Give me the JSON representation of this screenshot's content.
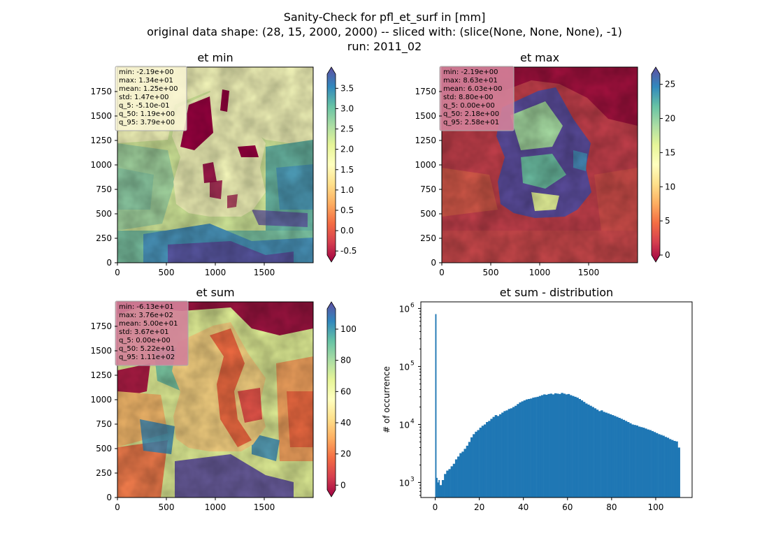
{
  "figure": {
    "suptitle_lines": [
      "Sanity-Check for pfl_et_surf in [mm]",
      "original data shape: (28, 15, 2000, 2000) -- sliced with: (slice(None, None, None), -1)",
      "run: 2011_02"
    ]
  },
  "colors": {
    "stats_box_light": "#fbf7d6",
    "stats_box_red": "#d4829a",
    "histogram_bar": "#1f77b4",
    "spectral_stops": [
      "#9e0142",
      "#d53e4f",
      "#f46d43",
      "#fdae61",
      "#fee08b",
      "#ffffbf",
      "#e6f598",
      "#abdda4",
      "#66c2a5",
      "#3288bd",
      "#5e4fa2"
    ]
  },
  "chart_data": [
    {
      "type": "heatmap",
      "title": "et min",
      "colormap": "Spectral_r",
      "colorbar_ticks": [
        "-0.5",
        "0.0",
        "0.5",
        "1.0",
        "1.5",
        "2.0",
        "2.5",
        "3.0",
        "3.5"
      ],
      "colorbar_range": [
        -0.6,
        3.85
      ],
      "colorbar_extend": "both",
      "x_ticks": [
        "0",
        "500",
        "1000",
        "1500"
      ],
      "y_ticks": [
        "0",
        "250",
        "500",
        "750",
        "1000",
        "1250",
        "1500",
        "1750"
      ],
      "xlim": [
        0,
        2000
      ],
      "ylim": [
        0,
        2000
      ],
      "stats": [
        "min: -2.19e+00",
        "max: 1.34e+01",
        "mean: 1.25e+00",
        "std: 1.47e+00",
        "q_5: -5.10e-01",
        "q_50: 1.19e+00",
        "q_95: 3.79e+00"
      ]
    },
    {
      "type": "heatmap",
      "title": "et max",
      "colormap": "Spectral",
      "colorbar_ticks": [
        "0",
        "5",
        "10",
        "15",
        "20",
        "25"
      ],
      "colorbar_range": [
        0,
        26.5
      ],
      "colorbar_extend": "both",
      "x_ticks": [
        "0",
        "500",
        "1000",
        "1500"
      ],
      "y_ticks": [
        "0",
        "250",
        "500",
        "750",
        "1000",
        "1250",
        "1500",
        "1750"
      ],
      "xlim": [
        0,
        2000
      ],
      "ylim": [
        0,
        2000
      ],
      "stats": [
        "min: -2.19e+00",
        "max: 8.63e+01",
        "mean: 6.03e+00",
        "std: 8.80e+00",
        "q_5: 0.00e+00",
        "q_50: 2.18e+00",
        "q_95: 2.58e+01"
      ]
    },
    {
      "type": "heatmap",
      "title": "et sum",
      "colormap": "Spectral",
      "colorbar_ticks": [
        "0",
        "20",
        "40",
        "60",
        "80",
        "100"
      ],
      "colorbar_range": [
        -3,
        113
      ],
      "colorbar_extend": "both",
      "x_ticks": [
        "0",
        "500",
        "1000",
        "1500"
      ],
      "y_ticks": [
        "0",
        "250",
        "500",
        "750",
        "1000",
        "1250",
        "1500",
        "1750"
      ],
      "xlim": [
        0,
        2000
      ],
      "ylim": [
        0,
        2000
      ],
      "stats": [
        "min: -6.13e+01",
        "max: 3.76e+02",
        "mean: 5.00e+01",
        "std: 3.67e+01",
        "q_5: 0.00e+00",
        "q_50: 5.22e+01",
        "q_95: 1.11e+02"
      ]
    },
    {
      "type": "bar",
      "title": "et sum - distribution",
      "ylabel": "# of occurrence",
      "y_scale": "log",
      "xlim": [
        -6.5,
        116.5
      ],
      "ylim": [
        550,
        1300000
      ],
      "x_ticks": [
        0,
        20,
        40,
        60,
        80,
        100
      ],
      "y_ticks": [
        1000,
        10000,
        100000,
        1000000
      ],
      "y_tick_bases": [
        "10",
        "10",
        "10",
        "10"
      ],
      "y_tick_exponents": [
        "3",
        "4",
        "5",
        "6"
      ],
      "bin_width": 0.5,
      "x": [
        0,
        0.5,
        1,
        1.5,
        2,
        3,
        4,
        5,
        6,
        7,
        8,
        9,
        10,
        11,
        12,
        13,
        14,
        15,
        16,
        17,
        18,
        19,
        20,
        21,
        22,
        23,
        24,
        25,
        26,
        27,
        28,
        29,
        30,
        31,
        32,
        33,
        34,
        35,
        36,
        37,
        38,
        39,
        40,
        41,
        42,
        43,
        44,
        45,
        46,
        47,
        48,
        49,
        50,
        51,
        52,
        53,
        54,
        55,
        56,
        57,
        58,
        59,
        60,
        61,
        62,
        63,
        64,
        65,
        66,
        67,
        68,
        69,
        70,
        71,
        72,
        73,
        74,
        75,
        76,
        77,
        78,
        79,
        80,
        81,
        82,
        83,
        84,
        85,
        86,
        87,
        88,
        89,
        90,
        91,
        92,
        93,
        94,
        95,
        96,
        97,
        98,
        99,
        100,
        101,
        102,
        103,
        104,
        105,
        106,
        107,
        108,
        109,
        110
      ],
      "values": [
        800000,
        1200,
        1000,
        1100,
        900,
        1100,
        1400,
        1600,
        1700,
        1900,
        2100,
        2500,
        2800,
        3200,
        3400,
        3800,
        4300,
        5000,
        6000,
        6800,
        7500,
        8000,
        8800,
        9500,
        10000,
        11000,
        11500,
        12500,
        13500,
        14500,
        14000,
        15000,
        16000,
        17000,
        17500,
        18500,
        19000,
        20000,
        21000,
        22500,
        24000,
        25000,
        26000,
        27000,
        27500,
        28000,
        29000,
        29500,
        30000,
        31000,
        32000,
        33000,
        32500,
        33500,
        34000,
        33000,
        34500,
        34000,
        33500,
        35000,
        34000,
        33000,
        33500,
        32000,
        31000,
        30000,
        29000,
        27500,
        26000,
        24500,
        23000,
        22000,
        21000,
        20000,
        19000,
        18000,
        17000,
        17500,
        16500,
        16000,
        15500,
        15000,
        14500,
        14000,
        13500,
        13000,
        12500,
        12000,
        11500,
        11000,
        10500,
        10000,
        9800,
        9600,
        9200,
        9000,
        8800,
        8500,
        8200,
        8000,
        7700,
        7400,
        7100,
        6800,
        6600,
        6400,
        6100,
        5900,
        5600,
        5400,
        5200,
        5100,
        4000
      ]
    }
  ]
}
